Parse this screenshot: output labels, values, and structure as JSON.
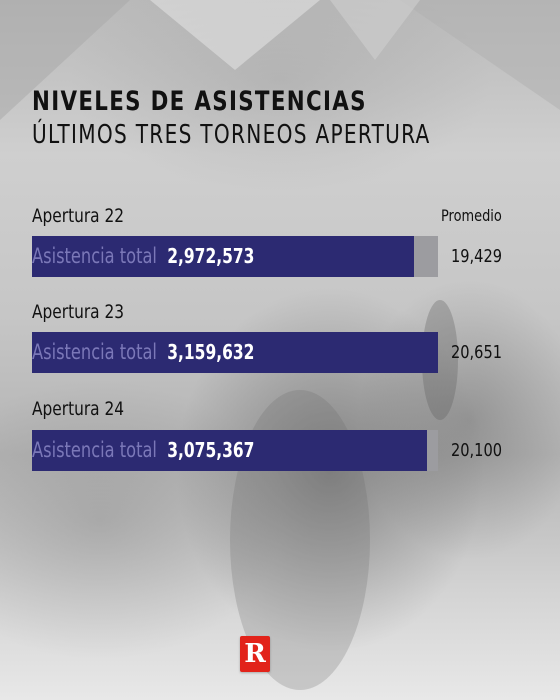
{
  "header": {
    "title": "NIVELES DE ASISTENCIAS",
    "subtitle": "ÚLTIMOS TRES TORNEOS APERTURA"
  },
  "average_header": "Promedio",
  "metric_label": "Asistencia total",
  "rows": [
    {
      "label": "Apertura 22",
      "total_text": "2,972,573",
      "average_text": "19,429"
    },
    {
      "label": "Apertura 23",
      "total_text": "3,159,632",
      "average_text": "20,651"
    },
    {
      "label": "Apertura 24",
      "total_text": "3,075,367",
      "average_text": "20,100"
    }
  ],
  "chart_data": {
    "type": "bar",
    "orientation": "horizontal",
    "title": "NIVELES DE ASISTENCIAS",
    "subtitle": "ÚLTIMOS TRES TORNEOS APERTURA",
    "categories": [
      "Apertura 22",
      "Apertura 23",
      "Apertura 24"
    ],
    "series": [
      {
        "name": "Asistencia total",
        "values": [
          2972573,
          3159632,
          3075367
        ]
      }
    ],
    "averages": [
      19429,
      20651,
      20100
    ],
    "xlim": [
      0,
      3159632
    ],
    "grid": false,
    "legend": "none"
  },
  "colors": {
    "bar": "#2c2a72",
    "track": "#9c9ca0",
    "metric_label": "#7b78b8",
    "value_text": "#ffffff",
    "brand": "#e2231a"
  },
  "logo": {
    "letter": "R"
  }
}
